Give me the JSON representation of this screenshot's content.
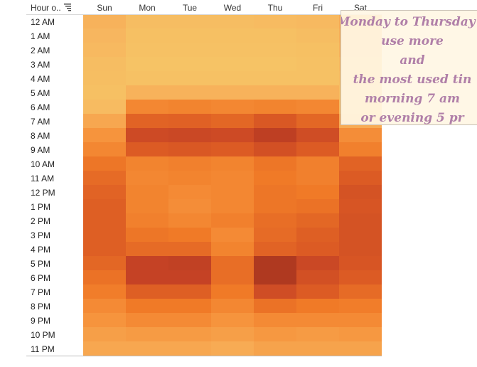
{
  "header": {
    "row_field_label": "Hour o..",
    "sort_icon": "sort-descending-icon"
  },
  "annotation": {
    "lines": [
      "Monday to Thursday p",
      "use more",
      "and",
      "the most used tin",
      "morning 7 am",
      "or evening 5 pr"
    ]
  },
  "colors": {
    "scale": [
      "#f5d06b",
      "#f7b55e",
      "#f6953e",
      "#f07a27",
      "#db5a24",
      "#c64325",
      "#a8361f"
    ]
  },
  "chart_data": {
    "type": "heatmap",
    "title": "",
    "xlabel": "",
    "ylabel": "Hour o..",
    "columns": [
      "Sun",
      "Mon",
      "Tue",
      "Wed",
      "Thu",
      "Fri",
      "Sat"
    ],
    "rows": [
      "12 AM",
      "1 AM",
      "2 AM",
      "3 AM",
      "4 AM",
      "5 AM",
      "6 AM",
      "7 AM",
      "8 AM",
      "9 AM",
      "10 AM",
      "11 AM",
      "12 PM",
      "1 PM",
      "2 PM",
      "3 PM",
      "4 PM",
      "5 PM",
      "6 PM",
      "7 PM",
      "8 PM",
      "9 PM",
      "10 PM",
      "11 PM"
    ],
    "value_range": [
      0,
      100
    ],
    "values": [
      [
        18,
        12,
        12,
        12,
        13,
        14,
        22
      ],
      [
        16,
        10,
        10,
        10,
        10,
        12,
        20
      ],
      [
        14,
        9,
        9,
        9,
        9,
        10,
        18
      ],
      [
        12,
        8,
        8,
        8,
        8,
        9,
        15
      ],
      [
        11,
        9,
        9,
        9,
        9,
        9,
        13
      ],
      [
        10,
        18,
        18,
        18,
        18,
        18,
        12
      ],
      [
        13,
        42,
        44,
        42,
        44,
        42,
        14
      ],
      [
        24,
        62,
        63,
        60,
        68,
        60,
        22
      ],
      [
        34,
        78,
        80,
        78,
        88,
        76,
        38
      ],
      [
        42,
        66,
        68,
        66,
        74,
        66,
        46
      ],
      [
        52,
        44,
        46,
        44,
        52,
        46,
        62
      ],
      [
        58,
        42,
        44,
        42,
        50,
        46,
        66
      ],
      [
        62,
        44,
        40,
        42,
        52,
        50,
        72
      ],
      [
        64,
        44,
        38,
        42,
        52,
        54,
        70
      ],
      [
        64,
        46,
        42,
        46,
        56,
        60,
        72
      ],
      [
        64,
        52,
        50,
        40,
        58,
        64,
        72
      ],
      [
        64,
        58,
        58,
        44,
        62,
        66,
        72
      ],
      [
        60,
        84,
        86,
        56,
        96,
        80,
        70
      ],
      [
        54,
        84,
        84,
        56,
        96,
        74,
        66
      ],
      [
        48,
        64,
        64,
        50,
        76,
        66,
        58
      ],
      [
        40,
        50,
        50,
        42,
        54,
        50,
        48
      ],
      [
        34,
        40,
        40,
        34,
        40,
        40,
        40
      ],
      [
        28,
        30,
        30,
        28,
        32,
        30,
        32
      ],
      [
        24,
        24,
        24,
        22,
        26,
        26,
        26
      ]
    ],
    "legend": "none",
    "grid": false
  }
}
